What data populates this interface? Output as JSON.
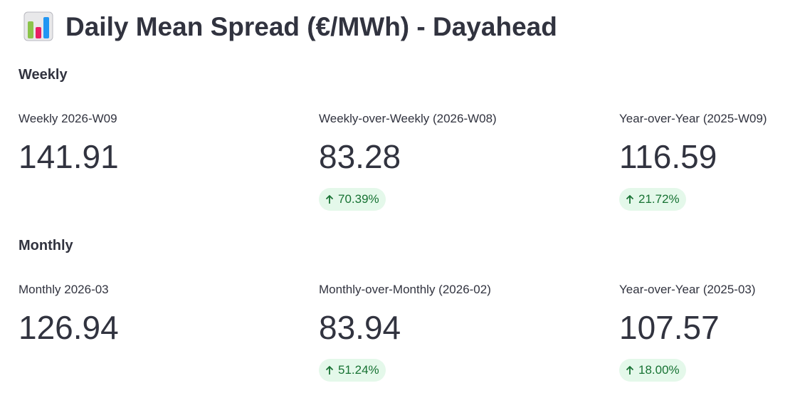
{
  "header": {
    "title": "Daily Mean Spread (€/MWh) - Dayahead"
  },
  "sections": [
    {
      "heading": "Weekly",
      "metrics": [
        {
          "label": "Weekly 2026-W09",
          "value": "141.91"
        },
        {
          "label": "Weekly-over-Weekly (2026-W08)",
          "value": "83.28",
          "delta": "70.39%"
        },
        {
          "label": "Year-over-Year (2025-W09)",
          "value": "116.59",
          "delta": "21.72%"
        }
      ]
    },
    {
      "heading": "Monthly",
      "metrics": [
        {
          "label": "Monthly 2026-03",
          "value": "126.94"
        },
        {
          "label": "Monthly-over-Monthly (2026-02)",
          "value": "83.94",
          "delta": "51.24%"
        },
        {
          "label": "Year-over-Year (2025-03)",
          "value": "107.57",
          "delta": "18.00%"
        }
      ]
    }
  ]
}
